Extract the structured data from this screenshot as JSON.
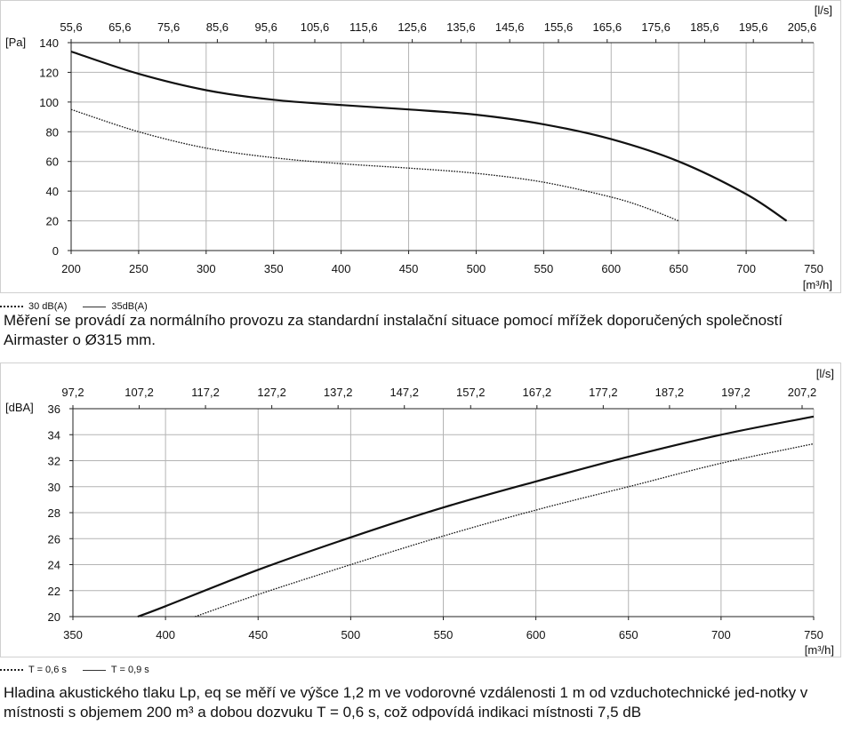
{
  "chart_data": [
    {
      "type": "line",
      "title": "",
      "ylabel": "[Pa]",
      "xlabel": "[m³/h]",
      "top_axis_label": "[l/s]",
      "xlim": [
        200,
        750
      ],
      "ylim": [
        0,
        140
      ],
      "grid": true,
      "legend_position": "bottom-left",
      "x_ticks": [
        "200",
        "250",
        "300",
        "350",
        "400",
        "450",
        "500",
        "550",
        "600",
        "650",
        "700",
        "750"
      ],
      "y_ticks": [
        "0",
        "20",
        "40",
        "60",
        "80",
        "100",
        "120",
        "140"
      ],
      "top_ticks": [
        "55,6",
        "65,6",
        "75,6",
        "85,6",
        "95,6",
        "105,6",
        "115,6",
        "125,6",
        "135,6",
        "145,6",
        "155,6",
        "165,6",
        "175,6",
        "185,6",
        "195,6",
        "205,6"
      ],
      "series": [
        {
          "name": "30 dB(A)",
          "style": "dotted",
          "x": [
            200,
            250,
            300,
            350,
            400,
            450,
            500,
            550,
            600,
            625,
            650
          ],
          "y": [
            95,
            80,
            69,
            62.5,
            58.5,
            55.5,
            52,
            46,
            36,
            29,
            20
          ]
        },
        {
          "name": "35dB(A)",
          "style": "solid",
          "x": [
            200,
            250,
            300,
            350,
            400,
            450,
            500,
            550,
            600,
            650,
            700,
            730
          ],
          "y": [
            134,
            119,
            108,
            101.5,
            98,
            95,
            91.5,
            85,
            75,
            60,
            38,
            20
          ]
        }
      ]
    },
    {
      "type": "line",
      "title": "",
      "ylabel": "[dBA]",
      "xlabel": "[m³/h]",
      "top_axis_label": "[l/s]",
      "xlim": [
        350,
        750
      ],
      "ylim": [
        20,
        36
      ],
      "grid": true,
      "legend_position": "bottom-left",
      "x_ticks": [
        "350",
        "400",
        "450",
        "500",
        "550",
        "600",
        "650",
        "700",
        "750"
      ],
      "y_ticks": [
        "20",
        "22",
        "24",
        "26",
        "28",
        "30",
        "32",
        "34",
        "36"
      ],
      "top_ticks": [
        "97,2",
        "107,2",
        "117,2",
        "127,2",
        "137,2",
        "147,2",
        "157,2",
        "167,2",
        "177,2",
        "187,2",
        "197,2",
        "207,2"
      ],
      "series": [
        {
          "name": "T = 0,6 s",
          "style": "dotted",
          "x": [
            416,
            450,
            500,
            550,
            600,
            650,
            700,
            750
          ],
          "y": [
            20,
            21.7,
            24,
            26.2,
            28.2,
            30,
            31.8,
            33.3
          ]
        },
        {
          "name": "T = 0,9 s",
          "style": "solid",
          "x": [
            385,
            400,
            450,
            500,
            550,
            600,
            650,
            700,
            750
          ],
          "y": [
            20,
            20.8,
            23.6,
            26.1,
            28.4,
            30.4,
            32.3,
            34,
            35.4
          ]
        }
      ]
    }
  ],
  "captions": {
    "chart1": "Měření se provádí za normálního provozu za standardní instalační situace pomocí mřížek doporučených společností Airmaster o Ø315 mm.",
    "chart2": "Hladina akustického tlaku Lp, eq se měří ve výšce 1,2 m ve vodorovné vzdálenosti 1 m od vzduchotechnické jed-notky v místnosti s objemem 200 m³ a dobou dozvuku T = 0,6 s, což odpovídá indikaci místnosti 7,5 dB"
  },
  "colors": {
    "grid": "#b4b4b4",
    "line": "#111111",
    "axis": "#222222"
  }
}
